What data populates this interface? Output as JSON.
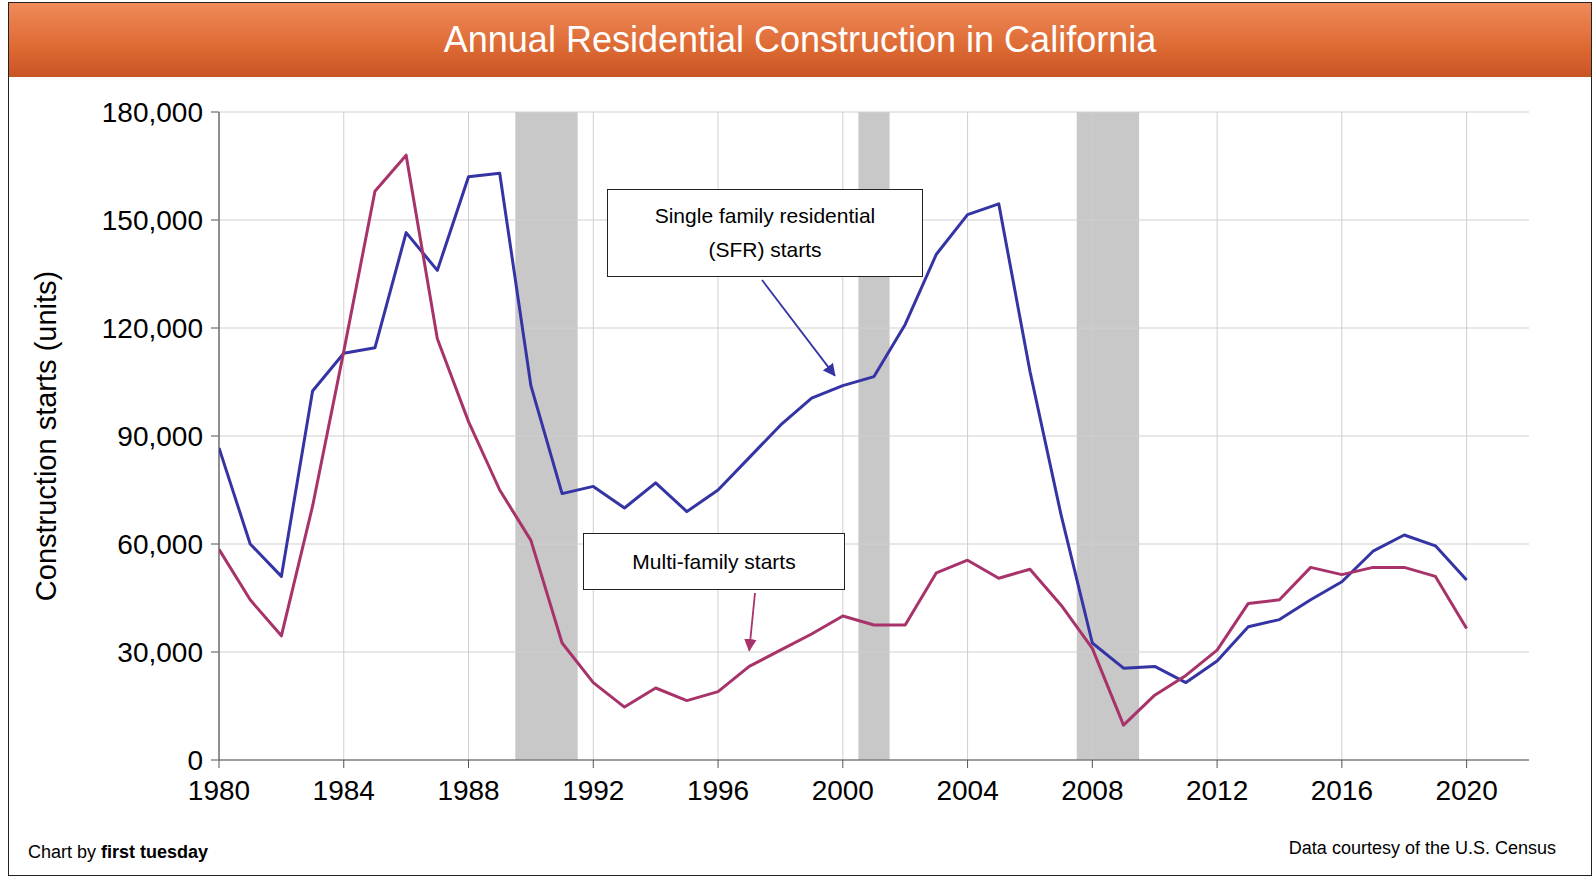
{
  "chart_data": {
    "type": "line",
    "title": "Annual Residential Construction in California",
    "y_label": "Construction starts (units)",
    "credit": "Chart by",
    "credit_bold": "first tuesday",
    "source": "Data courtesy of the U.S. Census",
    "x": [
      1980,
      1981,
      1982,
      1983,
      1984,
      1985,
      1986,
      1987,
      1988,
      1989,
      1990,
      1991,
      1992,
      1993,
      1994,
      1995,
      1996,
      1997,
      1998,
      1999,
      2000,
      2001,
      2002,
      2003,
      2004,
      2005,
      2006,
      2007,
      2008,
      2009,
      2010,
      2011,
      2012,
      2013,
      2014,
      2015,
      2016,
      2017,
      2018,
      2019,
      2020
    ],
    "series": [
      {
        "name": "Single family residential (SFR) starts",
        "color": "#3434a4",
        "values": [
          86700,
          60000,
          51000,
          102500,
          113000,
          114500,
          146500,
          136000,
          162000,
          163000,
          104000,
          74000,
          76000,
          70000,
          77000,
          69000,
          75000,
          84000,
          93000,
          100500,
          104000,
          106500,
          121000,
          140500,
          151500,
          154500,
          108000,
          68000,
          32500,
          25500,
          26000,
          21500,
          27500,
          37000,
          39000,
          44500,
          49500,
          58000,
          62500,
          59500,
          50000
        ]
      },
      {
        "name": "Multi-family starts",
        "color": "#a8336a",
        "values": [
          58500,
          44500,
          34500,
          70500,
          113500,
          158000,
          168000,
          117000,
          94000,
          75000,
          61000,
          32500,
          21500,
          14700,
          20000,
          16500,
          19000,
          26000,
          30500,
          35000,
          40000,
          37500,
          37500,
          52000,
          55500,
          50500,
          53000,
          43000,
          31000,
          9700,
          18000,
          23500,
          30500,
          43500,
          44500,
          53500,
          51500,
          53500,
          53500,
          51000,
          36500
        ]
      }
    ],
    "shaded_periods": [
      {
        "start": 1989.5,
        "end": 1991.5
      },
      {
        "start": 2000.5,
        "end": 2001.5
      },
      {
        "start": 2007.5,
        "end": 2009.5
      }
    ],
    "annotations": [
      {
        "text": "Single family residential (SFR) starts",
        "series": 0,
        "x": 2000
      },
      {
        "text": "Multi-family starts",
        "series": 1,
        "x": 1997
      }
    ],
    "xlim": [
      1980,
      2022
    ],
    "xticks": [
      1980,
      1984,
      1988,
      1992,
      1996,
      2000,
      2004,
      2008,
      2012,
      2016,
      2020
    ],
    "ylim": [
      0,
      180000
    ],
    "yticks": [
      0,
      {
        "value": 30000,
        "label": "30,000"
      },
      {
        "value": 60000,
        "label": "60,000"
      },
      {
        "value": 90000,
        "label": "90,000"
      },
      {
        "value": 120000,
        "label": "120,000"
      },
      {
        "value": 150000,
        "label": "150,000"
      },
      {
        "value": 180000,
        "label": "180,000"
      }
    ],
    "grid": true
  }
}
